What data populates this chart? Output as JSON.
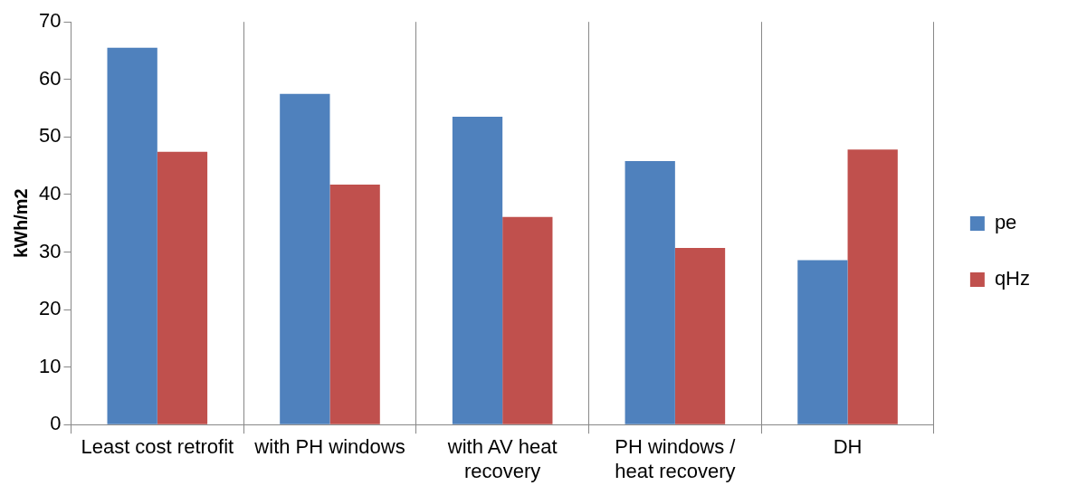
{
  "chart_data": {
    "type": "bar",
    "ylabel": "kWh/m2",
    "categories": [
      "Least cost retrofit",
      "with PH windows",
      "with AV heat recovery",
      "PH windows / heat recovery",
      "DH"
    ],
    "series": [
      {
        "name": "pe",
        "color": "#4f81bd",
        "values": [
          65.5,
          57.5,
          53.5,
          45.8,
          28.6
        ]
      },
      {
        "name": "qHz",
        "color": "#c0504d",
        "values": [
          47.4,
          41.7,
          36.1,
          30.7,
          47.8
        ]
      }
    ],
    "ylim": [
      0,
      70
    ],
    "yticks": [
      0,
      10,
      20,
      30,
      40,
      50,
      60,
      70
    ],
    "grid": "x",
    "legend": "right"
  }
}
